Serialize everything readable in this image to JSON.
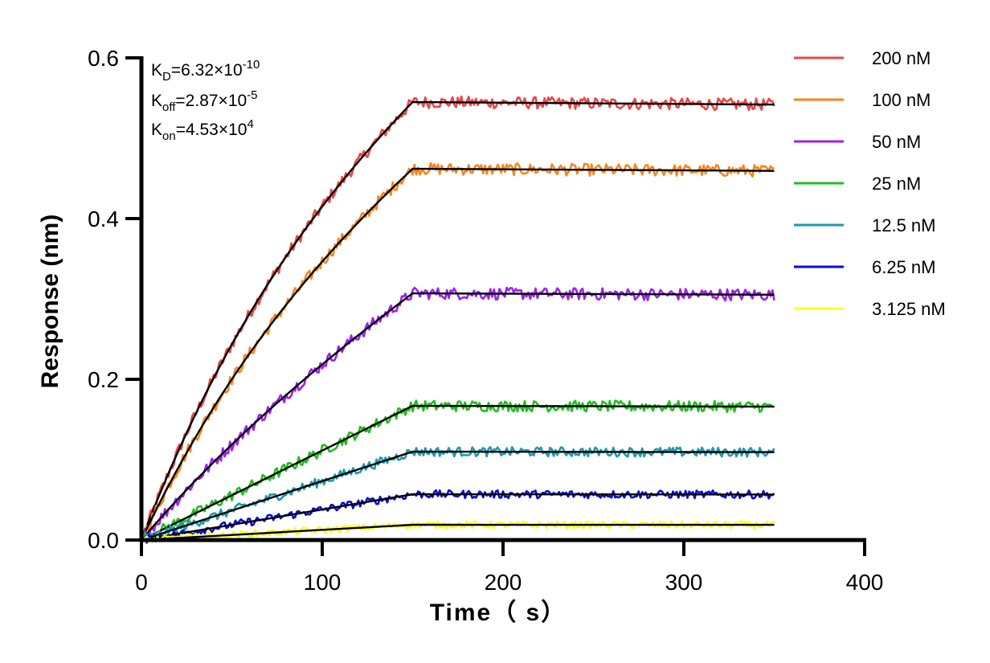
{
  "chart_data": {
    "type": "line",
    "xlabel": "Time（ s）",
    "ylabel": "Response (nm)",
    "xlim": [
      0,
      400
    ],
    "ylim": [
      0,
      0.6
    ],
    "x_ticks": [
      "0",
      "100",
      "200",
      "300",
      "400"
    ],
    "y_ticks": [
      "0.0",
      "0.2",
      "0.4",
      "0.6"
    ],
    "grid": false,
    "legend_position": "right",
    "annotations": {
      "kd": {
        "base": "K",
        "sub": "D",
        "value": "=6.32×10",
        "exp": "-10"
      },
      "koff": {
        "base": "K",
        "sub": "off",
        "value": "=2.87×10",
        "exp": "-5"
      },
      "kon": {
        "base": "K",
        "sub": "on",
        "value": "=4.53×10",
        "exp": "4"
      }
    },
    "association_end": 150,
    "dissociation_end": 350,
    "fit_color": "#000000",
    "series": [
      {
        "name": "200 nM",
        "color": "#e8474a",
        "plateau": 0.545
      },
      {
        "name": "100 nM",
        "color": "#f7861c",
        "plateau": 0.462
      },
      {
        "name": "50 nM",
        "color": "#a020f0",
        "plateau": 0.307
      },
      {
        "name": "25 nM",
        "color": "#1fbf1f",
        "plateau": 0.167
      },
      {
        "name": "12.5 nM",
        "color": "#1a9bb0",
        "plateau": 0.11
      },
      {
        "name": "6.25 nM",
        "color": "#0a0ad6",
        "plateau": 0.057
      },
      {
        "name": "3.125 nM",
        "color": "#ffff1a",
        "plateau": 0.019
      }
    ]
  }
}
